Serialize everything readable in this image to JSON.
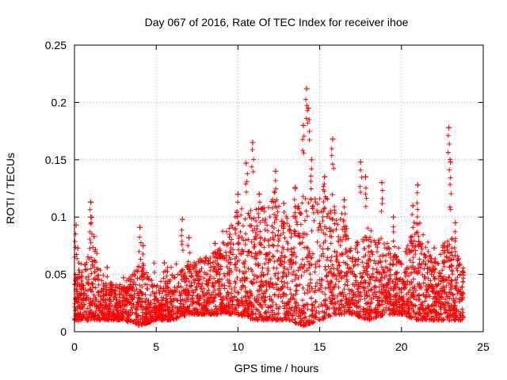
{
  "chart_data": {
    "type": "scatter",
    "title": "Day 067 of 2016, Rate Of TEC Index for receiver ihoe",
    "xlabel": "GPS time / hours",
    "ylabel": "ROTI / TECUs",
    "xlim": [
      0,
      25
    ],
    "ylim": [
      0,
      0.25
    ],
    "x_ticks": [
      0,
      5,
      10,
      15,
      20,
      25
    ],
    "x_tick_labels": [
      "0",
      "5",
      "10",
      "15",
      "20",
      "25"
    ],
    "y_ticks": [
      0,
      0.05,
      0.1,
      0.15,
      0.2,
      0.25
    ],
    "y_tick_labels": [
      "0",
      "0.05",
      "0.1",
      "0.15",
      "0.2",
      "0.25"
    ],
    "grid": true,
    "marker": "+",
    "marker_color": "#ff0000",
    "series": [
      {
        "name": "ROTI",
        "points": [
          [
            0.1,
            0.093
          ],
          [
            0.2,
            0.073
          ],
          [
            0.5,
            0.04
          ],
          [
            1.0,
            0.113
          ],
          [
            1.0,
            0.1
          ],
          [
            1.2,
            0.083
          ],
          [
            2.0,
            0.056
          ],
          [
            3.0,
            0.047
          ],
          [
            4.0,
            0.091
          ],
          [
            4.2,
            0.075
          ],
          [
            5.5,
            0.06
          ],
          [
            6.6,
            0.098
          ],
          [
            7.0,
            0.082
          ],
          [
            8.6,
            0.077
          ],
          [
            9.5,
            0.085
          ],
          [
            10.0,
            0.12
          ],
          [
            10.5,
            0.147
          ],
          [
            10.9,
            0.165
          ],
          [
            11.3,
            0.12
          ],
          [
            12.3,
            0.14
          ],
          [
            12.8,
            0.112
          ],
          [
            13.5,
            0.125
          ],
          [
            14.0,
            0.18
          ],
          [
            14.2,
            0.212
          ],
          [
            14.3,
            0.195
          ],
          [
            14.5,
            0.15
          ],
          [
            15.3,
            0.135
          ],
          [
            15.8,
            0.168
          ],
          [
            16.5,
            0.115
          ],
          [
            17.5,
            0.148
          ],
          [
            17.8,
            0.135
          ],
          [
            18.8,
            0.13
          ],
          [
            19.5,
            0.1
          ],
          [
            20.7,
            0.11
          ],
          [
            21.0,
            0.128
          ],
          [
            22.0,
            0.073
          ],
          [
            22.9,
            0.178
          ],
          [
            23.0,
            0.148
          ],
          [
            23.3,
            0.095
          ]
        ]
      }
    ],
    "envelope_hours": [
      0,
      1,
      2,
      3,
      4,
      5,
      6,
      7,
      8,
      9,
      10,
      11,
      12,
      13,
      14,
      15,
      16,
      17,
      18,
      19,
      20,
      21,
      22,
      23,
      23.8
    ],
    "envelope_upper": [
      0.045,
      0.07,
      0.045,
      0.04,
      0.06,
      0.04,
      0.05,
      0.06,
      0.065,
      0.075,
      0.11,
      0.1,
      0.12,
      0.1,
      0.12,
      0.13,
      0.12,
      0.075,
      0.09,
      0.08,
      0.06,
      0.1,
      0.06,
      0.09,
      0.06
    ],
    "envelope_lower": [
      0.01,
      0.01,
      0.01,
      0.01,
      0.005,
      0.01,
      0.01,
      0.015,
      0.015,
      0.015,
      0.015,
      0.01,
      0.01,
      0.01,
      0.005,
      0.01,
      0.015,
      0.015,
      0.01,
      0.015,
      0.015,
      0.01,
      0.01,
      0.01,
      0.01
    ]
  }
}
